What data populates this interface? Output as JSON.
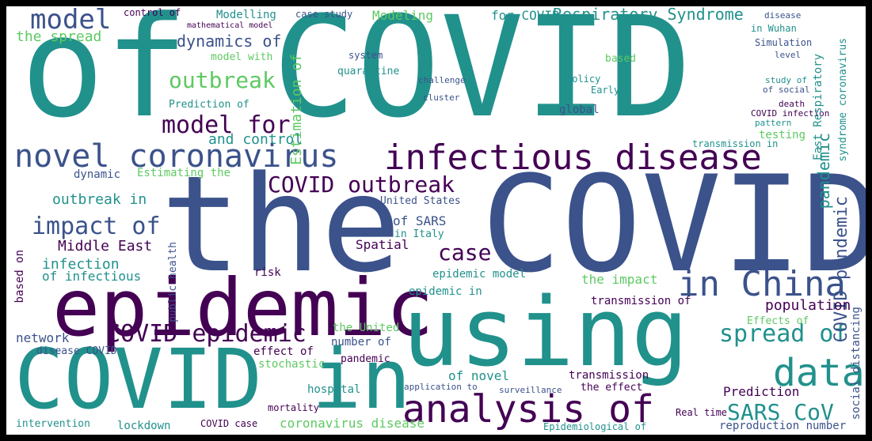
{
  "colors": {
    "frame": "#000000",
    "background": "#ffffff",
    "palette": [
      "#440154",
      "#3b528b",
      "#21918c",
      "#5ec962",
      "#fde725"
    ]
  },
  "words": [
    {
      "text": "of COVID",
      "color": "#21918c",
      "orient": "h"
    },
    {
      "text": "the COVID",
      "color": "#3b528b",
      "orient": "h"
    },
    {
      "text": "epidemic",
      "color": "#440154",
      "orient": "h"
    },
    {
      "text": "using",
      "color": "#21918c",
      "orient": "h"
    },
    {
      "text": "COVID in",
      "color": "#21918c",
      "orient": "h"
    },
    {
      "text": "infectious disease",
      "color": "#440154",
      "orient": "h"
    },
    {
      "text": "novel coronavirus",
      "color": "#3b528b",
      "orient": "h"
    },
    {
      "text": "analysis of",
      "color": "#440154",
      "orient": "h"
    },
    {
      "text": "in China",
      "color": "#3b528b",
      "orient": "h"
    },
    {
      "text": "data",
      "color": "#21918c",
      "orient": "h"
    },
    {
      "text": "model",
      "color": "#3b528b",
      "orient": "h"
    },
    {
      "text": "COVID outbreak",
      "color": "#440154",
      "orient": "h"
    },
    {
      "text": "COVID epidemic",
      "color": "#440154",
      "orient": "h"
    },
    {
      "text": "impact of",
      "color": "#3b528b",
      "orient": "h"
    },
    {
      "text": "model for",
      "color": "#440154",
      "orient": "h"
    },
    {
      "text": "outbreak",
      "color": "#5ec962",
      "orient": "h"
    },
    {
      "text": "spread of",
      "color": "#21918c",
      "orient": "h"
    },
    {
      "text": "SARS CoV",
      "color": "#21918c",
      "orient": "h"
    },
    {
      "text": "case",
      "color": "#440154",
      "orient": "h"
    },
    {
      "text": "Respiratory Syndrome",
      "color": "#21918c",
      "orient": "h"
    },
    {
      "text": "dynamics of",
      "color": "#3b528b",
      "orient": "h"
    },
    {
      "text": "the spread",
      "color": "#5ec962",
      "orient": "h"
    },
    {
      "text": "Estimation of",
      "color": "#5ec962",
      "orient": "v"
    },
    {
      "text": "and control",
      "color": "#21918c",
      "orient": "h"
    },
    {
      "text": "outbreak in",
      "color": "#21918c",
      "orient": "h"
    },
    {
      "text": "Middle East",
      "color": "#440154",
      "orient": "h"
    },
    {
      "text": "infection",
      "color": "#21918c",
      "orient": "h"
    },
    {
      "text": "of infectious",
      "color": "#21918c",
      "orient": "h"
    },
    {
      "text": "Modelling",
      "color": "#21918c",
      "orient": "h"
    },
    {
      "text": "Modeling",
      "color": "#5ec962",
      "orient": "h"
    },
    {
      "text": "for COVID",
      "color": "#21918c",
      "orient": "h"
    },
    {
      "text": "control of",
      "color": "#440154",
      "orient": "h"
    },
    {
      "text": "case study",
      "color": "#3b528b",
      "orient": "h"
    },
    {
      "text": "disease",
      "color": "#3b528b",
      "orient": "h"
    },
    {
      "text": "in Wuhan",
      "color": "#21918c",
      "orient": "h"
    },
    {
      "text": "Simulation",
      "color": "#3b528b",
      "orient": "h"
    },
    {
      "text": "level",
      "color": "#3b528b",
      "orient": "h"
    },
    {
      "text": "study of",
      "color": "#21918c",
      "orient": "h"
    },
    {
      "text": "of social",
      "color": "#3b528b",
      "orient": "h"
    },
    {
      "text": "death",
      "color": "#440154",
      "orient": "h"
    },
    {
      "text": "COVID infection",
      "color": "#440154",
      "orient": "h"
    },
    {
      "text": "pattern",
      "color": "#21918c",
      "orient": "h"
    },
    {
      "text": "testing",
      "color": "#5ec962",
      "orient": "h"
    },
    {
      "text": "transmission in",
      "color": "#21918c",
      "orient": "h"
    },
    {
      "text": "pandemic",
      "color": "#21918c",
      "orient": "v"
    },
    {
      "text": "East Respiratory",
      "color": "#21918c",
      "orient": "v"
    },
    {
      "text": "COVID pandemic",
      "color": "#3b528b",
      "orient": "v"
    },
    {
      "text": "syndrome coronavirus",
      "color": "#21918c",
      "orient": "v"
    },
    {
      "text": "population",
      "color": "#440154",
      "orient": "h"
    },
    {
      "text": "Effects of",
      "color": "#5ec962",
      "orient": "h"
    },
    {
      "text": "Prediction",
      "color": "#440154",
      "orient": "h"
    },
    {
      "text": "reproduction number",
      "color": "#3b528b",
      "orient": "h"
    },
    {
      "text": "social distancing",
      "color": "#3b528b",
      "orient": "v"
    },
    {
      "text": "lockdown",
      "color": "#21918c",
      "orient": "h"
    },
    {
      "text": "COVID case",
      "color": "#440154",
      "orient": "h"
    },
    {
      "text": "coronavirus disease",
      "color": "#5ec962",
      "orient": "h"
    },
    {
      "text": "hospital",
      "color": "#21918c",
      "orient": "h"
    },
    {
      "text": "intervention",
      "color": "#21918c",
      "orient": "h"
    },
    {
      "text": "network",
      "color": "#3b528b",
      "orient": "h"
    },
    {
      "text": "disease COVID",
      "color": "#3b528b",
      "orient": "h"
    },
    {
      "text": "the United",
      "color": "#5ec962",
      "orient": "h"
    },
    {
      "text": "number of",
      "color": "#3b528b",
      "orient": "h"
    },
    {
      "text": "effect of",
      "color": "#440154",
      "orient": "h"
    },
    {
      "text": "stochastic",
      "color": "#5ec962",
      "orient": "h"
    },
    {
      "text": "pandemic",
      "color": "#440154",
      "orient": "h"
    },
    {
      "text": "of novel",
      "color": "#21918c",
      "orient": "h"
    },
    {
      "text": "transmission",
      "color": "#440154",
      "orient": "h"
    },
    {
      "text": "the effect",
      "color": "#440154",
      "orient": "h"
    },
    {
      "text": "epidemic model",
      "color": "#21918c",
      "orient": "h"
    },
    {
      "text": "epidemic in",
      "color": "#21918c",
      "orient": "h"
    },
    {
      "text": "the impact",
      "color": "#5ec962",
      "orient": "h"
    },
    {
      "text": "transmission of",
      "color": "#440154",
      "orient": "h"
    },
    {
      "text": "Spatial",
      "color": "#440154",
      "orient": "h"
    },
    {
      "text": "risk",
      "color": "#440154",
      "orient": "h"
    },
    {
      "text": "of SARS",
      "color": "#3b528b",
      "orient": "h"
    },
    {
      "text": "in Italy",
      "color": "#21918c",
      "orient": "h"
    },
    {
      "text": "United States",
      "color": "#3b528b",
      "orient": "h"
    },
    {
      "text": "dynamic",
      "color": "#3b528b",
      "orient": "h"
    },
    {
      "text": "Estimating the",
      "color": "#5ec962",
      "orient": "h"
    },
    {
      "text": "Prediction of",
      "color": "#21918c",
      "orient": "h"
    },
    {
      "text": "model with",
      "color": "#5ec962",
      "orient": "h"
    },
    {
      "text": "quarantine",
      "color": "#21918c",
      "orient": "h"
    },
    {
      "text": "system",
      "color": "#3b528b",
      "orient": "h"
    },
    {
      "text": "global",
      "color": "#3b528b",
      "orient": "h"
    },
    {
      "text": "based on",
      "color": "#440154",
      "orient": "v"
    },
    {
      "text": "public health",
      "color": "#3b528b",
      "orient": "v"
    },
    {
      "text": "mortality",
      "color": "#440154",
      "orient": "h"
    },
    {
      "text": "Real time",
      "color": "#440154",
      "orient": "h"
    },
    {
      "text": "surveillance",
      "color": "#3b528b",
      "orient": "h"
    },
    {
      "text": "application to",
      "color": "#3b528b",
      "orient": "h"
    },
    {
      "text": "Epidemiological of",
      "color": "#21918c",
      "orient": "h"
    },
    {
      "text": "challenge",
      "color": "#3b528b",
      "orient": "h"
    },
    {
      "text": "cluster",
      "color": "#3b528b",
      "orient": "h"
    },
    {
      "text": "based",
      "color": "#5ec962",
      "orient": "h"
    },
    {
      "text": "policy",
      "color": "#21918c",
      "orient": "h"
    },
    {
      "text": "Early",
      "color": "#21918c",
      "orient": "h"
    },
    {
      "text": "mathematical model",
      "color": "#440154",
      "orient": "h"
    },
    {
      "text": "Middle East",
      "color": "#440154",
      "orient": "h"
    }
  ]
}
